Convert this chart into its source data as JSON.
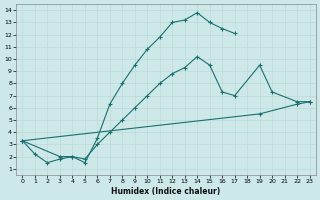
{
  "xlabel": "Humidex (Indice chaleur)",
  "bg_color": "#cce8e8",
  "grid_major_color": "#aacece",
  "grid_minor_color": "#ddeeee",
  "line_color": "#1a7070",
  "xlim": [
    -0.5,
    23.5
  ],
  "ylim": [
    0.5,
    14.5
  ],
  "xticks": [
    0,
    1,
    2,
    3,
    4,
    5,
    6,
    7,
    8,
    9,
    10,
    11,
    12,
    13,
    14,
    15,
    16,
    17,
    18,
    19,
    20,
    21,
    22,
    23
  ],
  "yticks": [
    1,
    2,
    3,
    4,
    5,
    6,
    7,
    8,
    9,
    10,
    11,
    12,
    13,
    14
  ],
  "series1_x": [
    0,
    1,
    2,
    3,
    4,
    5,
    6,
    7,
    8,
    9,
    10,
    11,
    12,
    13,
    14,
    15,
    16,
    17
  ],
  "series1_y": [
    3.3,
    2.2,
    1.5,
    1.8,
    2.0,
    1.5,
    3.5,
    6.3,
    8.0,
    9.5,
    10.8,
    11.8,
    13.0,
    13.2,
    13.8,
    13.0,
    12.5,
    12.1
  ],
  "series2_x": [
    0,
    3,
    4,
    5,
    6,
    7,
    8,
    9,
    10,
    11,
    12,
    13,
    14,
    15,
    16,
    17,
    19,
    20,
    22,
    23
  ],
  "series2_y": [
    3.3,
    2.0,
    2.0,
    1.8,
    3.0,
    4.0,
    5.0,
    6.0,
    7.0,
    8.0,
    8.8,
    9.3,
    10.2,
    9.5,
    7.3,
    7.0,
    9.5,
    7.3,
    6.5,
    6.5
  ],
  "series3_x": [
    0,
    19,
    22,
    23
  ],
  "series3_y": [
    3.3,
    5.5,
    6.3,
    6.5
  ]
}
